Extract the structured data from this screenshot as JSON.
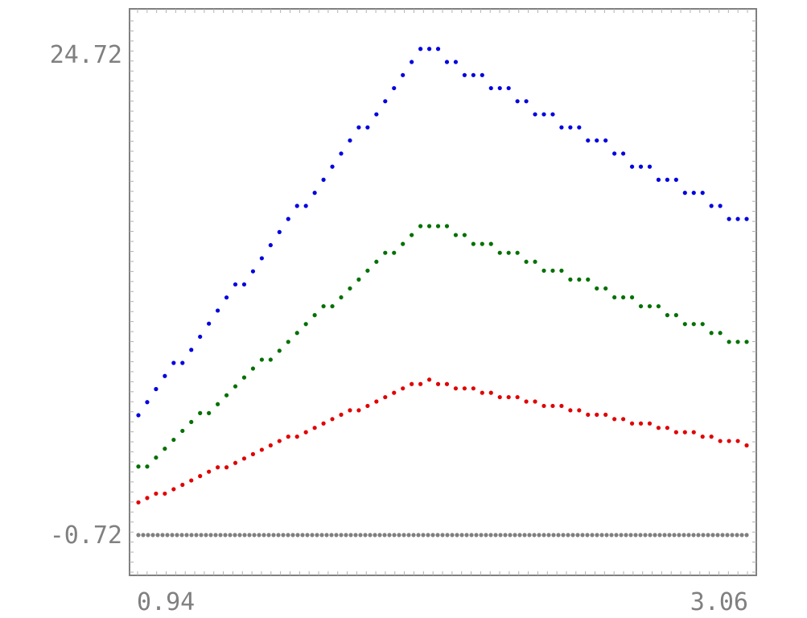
{
  "chart_data": {
    "type": "scatter",
    "xlim": [
      0.94,
      3.06
    ],
    "ylim": [
      -0.72,
      24.72
    ],
    "grid": false,
    "legend": "none",
    "x_tick_labels": [
      "0.94",
      "3.06"
    ],
    "y_tick_labels": [
      "24.72",
      "-0.72"
    ],
    "x_range": {
      "start": 0.94,
      "end": 3.06,
      "count": 70,
      "peak_x": 1.94
    },
    "series": [
      {
        "color": "#0000e0",
        "start": 5.6,
        "peak": 25.0,
        "end": 15.7
      },
      {
        "color": "#007000",
        "start": 2.6,
        "peak": 15.8,
        "end": 9.3
      },
      {
        "color": "#e00000",
        "start": 0.9,
        "peak": 7.4,
        "end": 4.0
      },
      {
        "color": "#808080",
        "start": -0.8,
        "peak": -0.8,
        "end": -0.8
      }
    ],
    "baseline": {
      "color": "#808080",
      "value": -0.8,
      "x_start": 0.94,
      "x_end": 3.06,
      "count": 127
    }
  }
}
